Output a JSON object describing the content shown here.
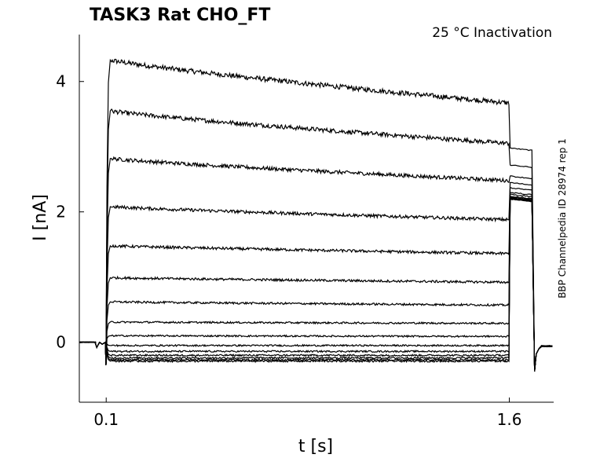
{
  "chart_data": {
    "type": "line",
    "title": "TASK3  Rat  CHO_FT",
    "subtitle": "25 °C  Inactivation",
    "side_label": "BBP Channelpedia ID 28974 rep 1",
    "xlabel": "t [s]",
    "ylabel": "I [nA]",
    "xlim": [
      0.0,
      1.765
    ],
    "ylim": [
      -0.92,
      4.72
    ],
    "xticks": [
      0.1,
      1.6
    ],
    "xtick_labels": [
      "0.1",
      "1.6"
    ],
    "yticks": [
      0,
      2,
      4
    ],
    "ytick_labels": [
      "0",
      "2",
      "4"
    ],
    "grid": false,
    "legend": "none",
    "line_color": "#000000",
    "protocol": {
      "step_on": 0.1,
      "step_off": 1.6,
      "tail_end": 1.69
    },
    "series": [
      {
        "peak": 4.33,
        "end": 3.67,
        "tail": 2.98
      },
      {
        "peak": 3.55,
        "end": 3.05,
        "tail": 2.72
      },
      {
        "peak": 2.82,
        "end": 2.48,
        "tail": 2.55
      },
      {
        "peak": 2.08,
        "end": 1.88,
        "tail": 2.45
      },
      {
        "peak": 1.48,
        "end": 1.36,
        "tail": 2.37
      },
      {
        "peak": 0.99,
        "end": 0.92,
        "tail": 2.3
      },
      {
        "peak": 0.62,
        "end": 0.57,
        "tail": 2.27
      },
      {
        "peak": 0.31,
        "end": 0.29,
        "tail": 2.24
      },
      {
        "peak": 0.1,
        "end": 0.09,
        "tail": 2.23
      },
      {
        "peak": -0.05,
        "end": -0.05,
        "tail": 2.22
      },
      {
        "peak": -0.14,
        "end": -0.14,
        "tail": 2.21
      },
      {
        "peak": -0.2,
        "end": -0.2,
        "tail": 2.21
      },
      {
        "peak": -0.24,
        "end": -0.24,
        "tail": 2.2
      },
      {
        "peak": -0.27,
        "end": -0.27,
        "tail": 2.2
      },
      {
        "peak": -0.29,
        "end": -0.29,
        "tail": 2.2
      }
    ]
  }
}
